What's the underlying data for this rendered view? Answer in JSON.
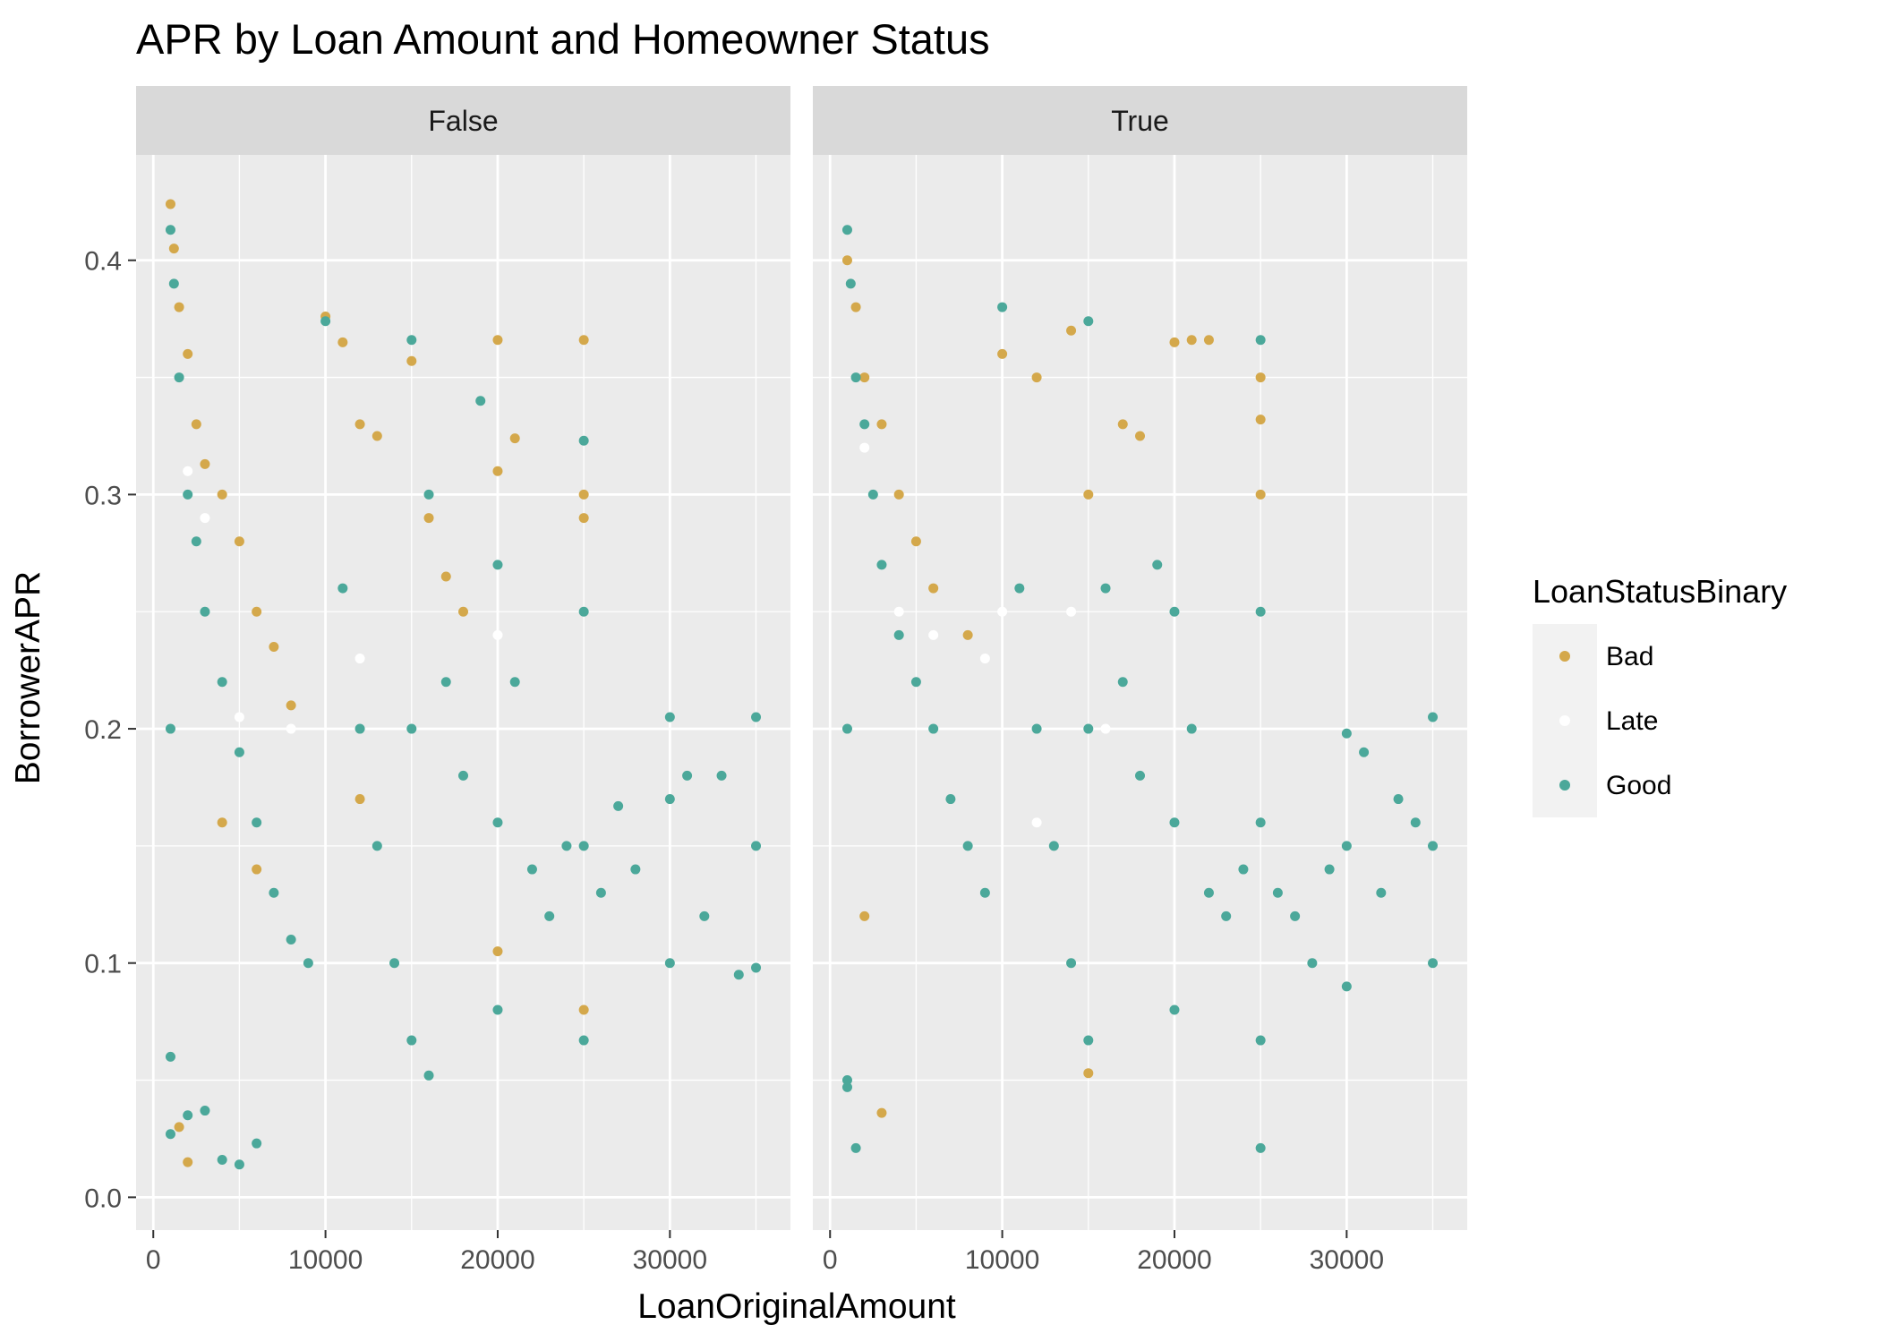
{
  "chart_data": {
    "type": "scatter",
    "title": "APR by Loan Amount and Homeowner Status",
    "xlabel": "LoanOriginalAmount",
    "ylabel": "BorrowerAPR",
    "xlim": [
      -1000,
      37000
    ],
    "ylim": [
      -0.014,
      0.445
    ],
    "x_ticks": [
      0,
      10000,
      20000,
      30000
    ],
    "x_tick_labels": [
      "0",
      "10000",
      "20000",
      "30000"
    ],
    "y_ticks": [
      0.0,
      0.1,
      0.2,
      0.3,
      0.4
    ],
    "y_tick_labels": [
      "0.0",
      "0.1",
      "0.2",
      "0.3",
      "0.4"
    ],
    "grid": true,
    "legend": {
      "title": "LoanStatusBinary",
      "position": "right",
      "entries": [
        {
          "label": "Bad",
          "color": "#D4A84B"
        },
        {
          "label": "Late",
          "color": "#FFFFFF"
        },
        {
          "label": "Good",
          "color": "#4BA89A"
        }
      ]
    },
    "facet_variable": "IsBorrowerHomeowner",
    "facets": [
      {
        "label": "False",
        "series": [
          {
            "name": "Bad",
            "x": [
              1000,
              1200,
              1500,
              2000,
              2500,
              3000,
              4000,
              5000,
              6000,
              7000,
              8000,
              10000,
              11000,
              12000,
              13000,
              15000,
              16000,
              17000,
              18000,
              20000,
              20000,
              21000,
              25000,
              25000,
              25000,
              25000,
              1500,
              2000,
              4000,
              6000,
              12000,
              20000
            ],
            "y": [
              0.424,
              0.405,
              0.38,
              0.36,
              0.33,
              0.313,
              0.3,
              0.28,
              0.25,
              0.235,
              0.21,
              0.376,
              0.365,
              0.33,
              0.325,
              0.357,
              0.29,
              0.265,
              0.25,
              0.366,
              0.31,
              0.324,
              0.366,
              0.3,
              0.29,
              0.08,
              0.03,
              0.015,
              0.16,
              0.14,
              0.17,
              0.105
            ]
          },
          {
            "name": "Late",
            "x": [
              2000,
              3000,
              5000,
              8000,
              12000,
              17000,
              20000
            ],
            "y": [
              0.31,
              0.29,
              0.205,
              0.2,
              0.23,
              0.22,
              0.24
            ]
          },
          {
            "name": "Good",
            "x": [
              1000,
              1000,
              1000,
              1200,
              1500,
              2000,
              2500,
              3000,
              4000,
              5000,
              6000,
              7000,
              8000,
              9000,
              10000,
              11000,
              12000,
              13000,
              14000,
              15000,
              15000,
              15000,
              16000,
              17000,
              18000,
              19000,
              20000,
              20000,
              20000,
              21000,
              22000,
              23000,
              24000,
              25000,
              25000,
              25000,
              25000,
              26000,
              27000,
              28000,
              30000,
              30000,
              30000,
              31000,
              32000,
              33000,
              34000,
              35000,
              35000,
              35000,
              1000,
              2000,
              3000,
              4000,
              5000,
              6000,
              16000
            ],
            "y": [
              0.413,
              0.2,
              0.06,
              0.39,
              0.35,
              0.3,
              0.28,
              0.25,
              0.22,
              0.19,
              0.16,
              0.13,
              0.11,
              0.1,
              0.374,
              0.26,
              0.2,
              0.15,
              0.1,
              0.366,
              0.2,
              0.067,
              0.3,
              0.22,
              0.18,
              0.34,
              0.27,
              0.16,
              0.08,
              0.22,
              0.14,
              0.12,
              0.15,
              0.323,
              0.25,
              0.15,
              0.067,
              0.13,
              0.167,
              0.14,
              0.205,
              0.17,
              0.1,
              0.18,
              0.12,
              0.18,
              0.095,
              0.205,
              0.15,
              0.098,
              0.027,
              0.035,
              0.037,
              0.016,
              0.014,
              0.023,
              0.052
            ]
          }
        ]
      },
      {
        "label": "True",
        "series": [
          {
            "name": "Bad",
            "x": [
              1000,
              1500,
              2000,
              3000,
              4000,
              5000,
              6000,
              8000,
              10000,
              12000,
              14000,
              15000,
              17000,
              18000,
              20000,
              21000,
              22000,
              25000,
              25000,
              25000,
              3000,
              15000,
              2000
            ],
            "y": [
              0.4,
              0.38,
              0.35,
              0.33,
              0.3,
              0.28,
              0.26,
              0.24,
              0.36,
              0.35,
              0.37,
              0.3,
              0.33,
              0.325,
              0.365,
              0.366,
              0.366,
              0.35,
              0.332,
              0.3,
              0.036,
              0.053,
              0.12
            ]
          },
          {
            "name": "Late",
            "x": [
              2000,
              4000,
              6000,
              9000,
              10000,
              12000,
              14000,
              16000
            ],
            "y": [
              0.32,
              0.25,
              0.24,
              0.23,
              0.25,
              0.16,
              0.25,
              0.2
            ]
          },
          {
            "name": "Good",
            "x": [
              1000,
              1000,
              1000,
              1200,
              1500,
              2000,
              2500,
              3000,
              4000,
              5000,
              6000,
              7000,
              8000,
              9000,
              10000,
              11000,
              12000,
              13000,
              14000,
              15000,
              15000,
              15000,
              16000,
              17000,
              18000,
              19000,
              20000,
              20000,
              20000,
              21000,
              22000,
              23000,
              24000,
              25000,
              25000,
              25000,
              25000,
              26000,
              27000,
              28000,
              29000,
              30000,
              30000,
              30000,
              31000,
              32000,
              33000,
              34000,
              35000,
              35000,
              35000,
              1000,
              1500,
              25000
            ],
            "y": [
              0.413,
              0.2,
              0.05,
              0.39,
              0.35,
              0.33,
              0.3,
              0.27,
              0.24,
              0.22,
              0.2,
              0.17,
              0.15,
              0.13,
              0.38,
              0.26,
              0.2,
              0.15,
              0.1,
              0.374,
              0.2,
              0.067,
              0.26,
              0.22,
              0.18,
              0.27,
              0.25,
              0.16,
              0.08,
              0.2,
              0.13,
              0.12,
              0.14,
              0.366,
              0.25,
              0.16,
              0.067,
              0.13,
              0.12,
              0.1,
              0.14,
              0.198,
              0.15,
              0.09,
              0.19,
              0.13,
              0.17,
              0.16,
              0.205,
              0.15,
              0.1,
              0.047,
              0.021,
              0.021
            ]
          }
        ]
      }
    ]
  }
}
